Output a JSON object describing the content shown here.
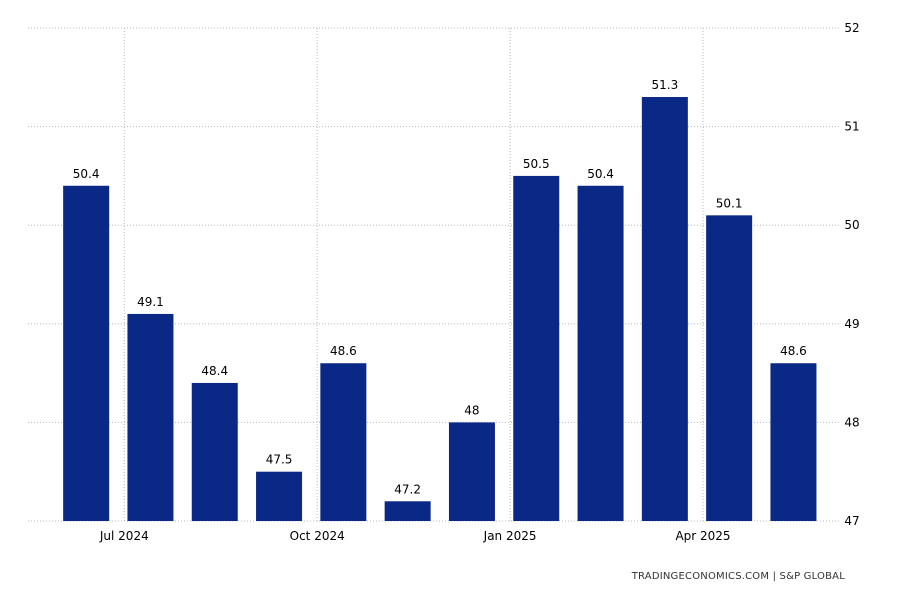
{
  "chart_data": {
    "type": "bar",
    "categories": [
      "2024-06",
      "2024-07",
      "2024-08",
      "2024-09",
      "2024-10",
      "2024-11",
      "2024-12",
      "2025-01",
      "2025-02",
      "2025-03",
      "2025-04",
      "2025-05"
    ],
    "values": [
      50.4,
      49.1,
      48.4,
      47.5,
      48.6,
      47.2,
      48,
      50.5,
      50.4,
      51.3,
      50.1,
      48.6
    ],
    "value_labels": [
      "50.4",
      "49.1",
      "48.4",
      "47.5",
      "48.6",
      "47.2",
      "48",
      "50.5",
      "50.4",
      "51.3",
      "50.1",
      "48.6"
    ],
    "x_ticks": [
      {
        "after_index": 0,
        "label": "Jul 2024"
      },
      {
        "after_index": 3,
        "label": "Oct 2024"
      },
      {
        "after_index": 6,
        "label": "Jan 2025"
      },
      {
        "after_index": 9,
        "label": "Apr 2025"
      }
    ],
    "y_ticks": [
      47,
      48,
      49,
      50,
      51,
      52
    ],
    "ylim": [
      47,
      52
    ],
    "y_axis_side": "right",
    "grid": true,
    "bar_color": "#0a2885",
    "title": "",
    "xlabel": "",
    "ylabel": ""
  },
  "source": "TRADINGECONOMICS.COM | S&P GLOBAL"
}
